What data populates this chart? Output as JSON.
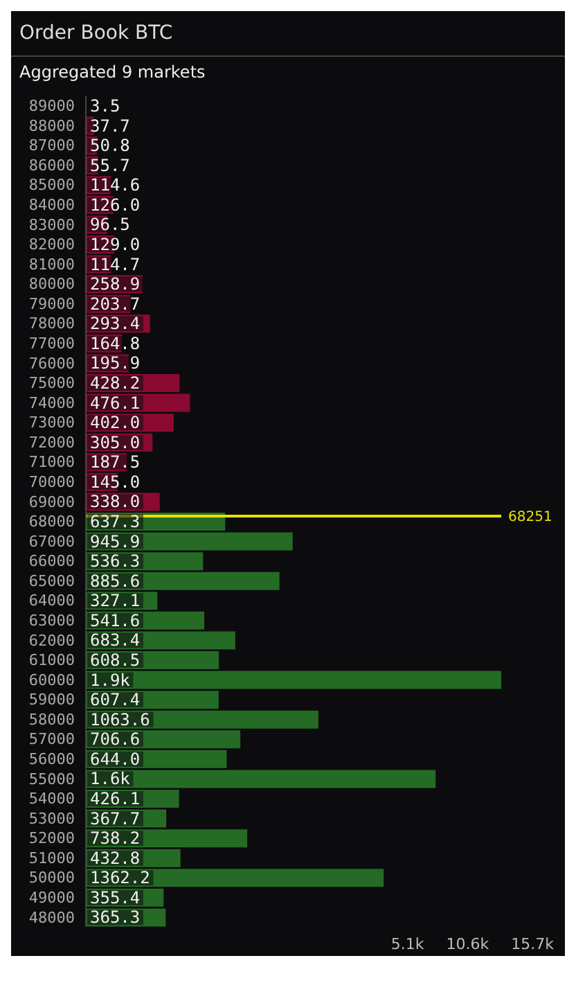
{
  "chart_data": {
    "type": "bar",
    "title": "Order Book BTC",
    "subtitle": "Aggregated 9 markets",
    "orientation": "horizontal",
    "x": [
      89000,
      88000,
      87000,
      86000,
      85000,
      84000,
      83000,
      82000,
      81000,
      80000,
      79000,
      78000,
      77000,
      76000,
      75000,
      74000,
      73000,
      72000,
      71000,
      70000,
      69000,
      68000,
      67000,
      66000,
      65000,
      64000,
      63000,
      62000,
      61000,
      60000,
      59000,
      58000,
      57000,
      56000,
      55000,
      54000,
      53000,
      52000,
      51000,
      50000,
      49000,
      48000
    ],
    "values": [
      3.5,
      37.7,
      50.8,
      55.7,
      114.6,
      126.0,
      96.5,
      129.0,
      114.7,
      258.9,
      203.7,
      293.4,
      164.8,
      195.9,
      428.2,
      476.1,
      402.0,
      305.0,
      187.5,
      145.0,
      338.0,
      637.3,
      945.9,
      536.3,
      885.6,
      327.1,
      541.6,
      683.4,
      608.5,
      1900,
      607.4,
      1063.6,
      706.6,
      644.0,
      1600,
      426.1,
      367.7,
      738.2,
      432.8,
      1362.2,
      355.4,
      365.3
    ],
    "value_labels": [
      "3.5",
      "37.7",
      "50.8",
      "55.7",
      "114.6",
      "126.0",
      "96.5",
      "129.0",
      "114.7",
      "258.9",
      "203.7",
      "293.4",
      "164.8",
      "195.9",
      "428.2",
      "476.1",
      "402.0",
      "305.0",
      "187.5",
      "145.0",
      "338.0",
      "637.3",
      "945.9",
      "536.3",
      "885.6",
      "327.1",
      "541.6",
      "683.4",
      "608.5",
      "1.9k",
      "607.4",
      "1063.6",
      "706.6",
      "644.0",
      "1.6k",
      "426.1",
      "367.7",
      "738.2",
      "432.8",
      "1362.2",
      "355.4",
      "365.3"
    ],
    "colors": [
      "#8c0a32",
      "#8c0a32",
      "#8c0a32",
      "#8c0a32",
      "#8c0a32",
      "#8c0a32",
      "#8c0a32",
      "#8c0a32",
      "#8c0a32",
      "#8c0a32",
      "#8c0a32",
      "#8c0a32",
      "#8c0a32",
      "#8c0a32",
      "#8c0a32",
      "#8c0a32",
      "#8c0a32",
      "#8c0a32",
      "#8c0a32",
      "#8c0a32",
      "#8c0a32",
      "#256b25",
      "#256b25",
      "#256b25",
      "#256b25",
      "#256b25",
      "#256b25",
      "#256b25",
      "#256b25",
      "#256b25",
      "#256b25",
      "#256b25",
      "#256b25",
      "#256b25",
      "#256b25",
      "#256b25",
      "#256b25",
      "#256b25",
      "#256b25",
      "#256b25",
      "#256b25",
      "#256b25"
    ],
    "ylim": [
      47500,
      89500
    ],
    "yticks": [
      48000,
      49000,
      50000,
      51000,
      52000,
      53000,
      54000,
      55000,
      56000,
      57000,
      58000,
      59000,
      60000,
      61000,
      62000,
      63000,
      64000,
      65000,
      66000,
      67000,
      68000,
      69000,
      70000,
      71000,
      72000,
      73000,
      74000,
      75000,
      76000,
      77000,
      78000,
      79000,
      80000,
      81000,
      82000,
      83000,
      84000,
      85000,
      86000,
      87000,
      88000,
      89000
    ],
    "ref_lines": [
      {
        "axis": "y",
        "value": 68251,
        "label": "68251",
        "color": "#e8e000"
      }
    ],
    "annotations": [
      "5.1k",
      "10.6k",
      "15.7k"
    ],
    "grid": false,
    "legend": false
  }
}
